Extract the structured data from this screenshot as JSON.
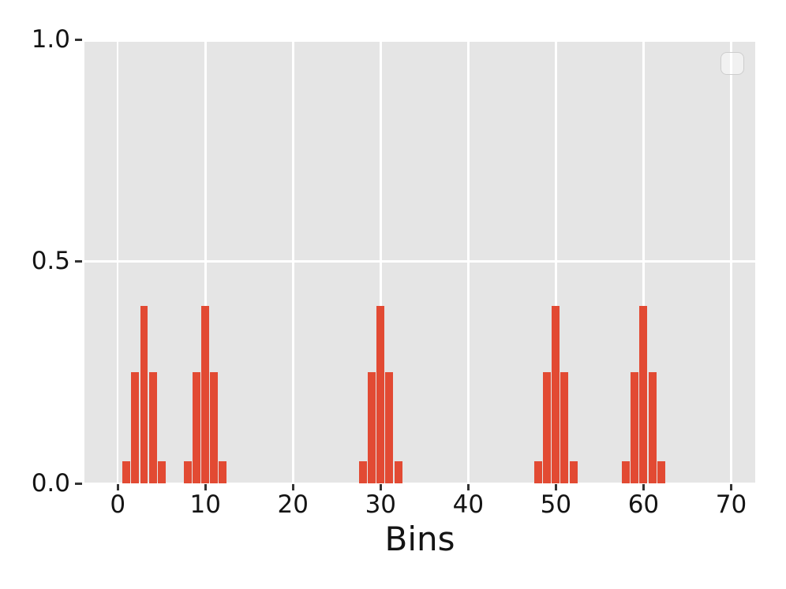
{
  "chart_data": {
    "type": "bar",
    "style": "ggplot",
    "title": "",
    "xlabel": "Bins",
    "ylabel": "",
    "xlim": [
      -3.8,
      72.75
    ],
    "ylim": [
      0,
      1.0
    ],
    "grid": true,
    "legend": {
      "visible": true,
      "items": [],
      "position": "upper right",
      "empty": true
    },
    "x_ticks": [
      {
        "v": 0,
        "label": "0"
      },
      {
        "v": 10,
        "label": "10"
      },
      {
        "v": 20,
        "label": "20"
      },
      {
        "v": 30,
        "label": "30"
      },
      {
        "v": 40,
        "label": "40"
      },
      {
        "v": 50,
        "label": "50"
      },
      {
        "v": 60,
        "label": "60"
      },
      {
        "v": 70,
        "label": "70"
      }
    ],
    "y_ticks": [
      {
        "v": 0.0,
        "label": "0.0"
      },
      {
        "v": 0.5,
        "label": "0.5"
      },
      {
        "v": 1.0,
        "label": "1.0"
      }
    ],
    "bar_width": 0.9,
    "cluster_centers": [
      3,
      10,
      30,
      50,
      60
    ],
    "cluster_offsets": [
      -2,
      -1,
      0,
      1,
      2
    ],
    "cluster_heights": [
      0.05,
      0.25,
      0.4,
      0.25,
      0.05
    ],
    "bars": [
      {
        "x": 1,
        "h": 0.05
      },
      {
        "x": 2,
        "h": 0.25
      },
      {
        "x": 3,
        "h": 0.4
      },
      {
        "x": 4,
        "h": 0.25
      },
      {
        "x": 5,
        "h": 0.05
      },
      {
        "x": 8,
        "h": 0.05
      },
      {
        "x": 9,
        "h": 0.25
      },
      {
        "x": 10,
        "h": 0.4
      },
      {
        "x": 11,
        "h": 0.25
      },
      {
        "x": 12,
        "h": 0.05
      },
      {
        "x": 28,
        "h": 0.05
      },
      {
        "x": 29,
        "h": 0.25
      },
      {
        "x": 30,
        "h": 0.4
      },
      {
        "x": 31,
        "h": 0.25
      },
      {
        "x": 32,
        "h": 0.05
      },
      {
        "x": 48,
        "h": 0.05
      },
      {
        "x": 49,
        "h": 0.25
      },
      {
        "x": 50,
        "h": 0.4
      },
      {
        "x": 51,
        "h": 0.25
      },
      {
        "x": 52,
        "h": 0.05
      },
      {
        "x": 58,
        "h": 0.05
      },
      {
        "x": 59,
        "h": 0.25
      },
      {
        "x": 60,
        "h": 0.4
      },
      {
        "x": 61,
        "h": 0.25
      },
      {
        "x": 62,
        "h": 0.05
      }
    ],
    "colors": {
      "bar": "#E24A33",
      "plot_bg": "#E5E5E5",
      "grid": "#FFFFFF",
      "figure_bg": "#FFFFFF",
      "tick_text": "#141414",
      "tick_mark": "#333333",
      "legend_border": "#CDCDCD",
      "legend_fill": "rgba(255,255,255,0.45)"
    }
  }
}
